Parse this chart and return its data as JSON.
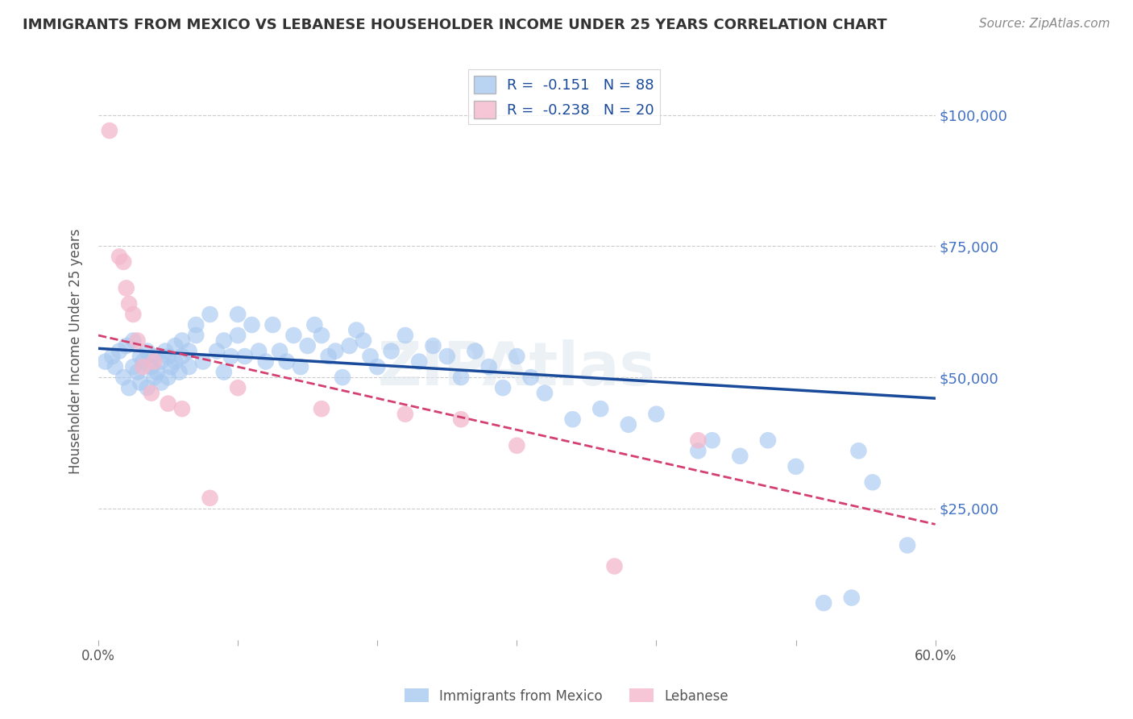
{
  "title": "IMMIGRANTS FROM MEXICO VS LEBANESE HOUSEHOLDER INCOME UNDER 25 YEARS CORRELATION CHART",
  "source": "Source: ZipAtlas.com",
  "ylabel": "Householder Income Under 25 years",
  "ytick_values": [
    25000,
    50000,
    75000,
    100000
  ],
  "y_min": 0,
  "y_max": 110000,
  "x_min": 0.0,
  "x_max": 0.6,
  "mexico_color": "#a8c8f0",
  "lebanese_color": "#f4b8cc",
  "mexico_line_color": "#1a4a9a",
  "lebanese_line_color": "#d44070",
  "mexico_scatter_x": [
    0.005,
    0.01,
    0.012,
    0.015,
    0.018,
    0.02,
    0.022,
    0.025,
    0.025,
    0.028,
    0.03,
    0.03,
    0.032,
    0.035,
    0.035,
    0.038,
    0.04,
    0.04,
    0.042,
    0.045,
    0.045,
    0.048,
    0.05,
    0.05,
    0.052,
    0.055,
    0.055,
    0.058,
    0.06,
    0.06,
    0.065,
    0.065,
    0.07,
    0.07,
    0.075,
    0.08,
    0.085,
    0.09,
    0.09,
    0.095,
    0.1,
    0.1,
    0.105,
    0.11,
    0.115,
    0.12,
    0.125,
    0.13,
    0.135,
    0.14,
    0.145,
    0.15,
    0.155,
    0.16,
    0.165,
    0.17,
    0.175,
    0.18,
    0.185,
    0.19,
    0.195,
    0.2,
    0.21,
    0.22,
    0.23,
    0.24,
    0.25,
    0.26,
    0.27,
    0.28,
    0.29,
    0.3,
    0.31,
    0.32,
    0.34,
    0.36,
    0.38,
    0.4,
    0.43,
    0.44,
    0.46,
    0.48,
    0.5,
    0.52,
    0.54,
    0.545,
    0.555,
    0.58
  ],
  "mexico_scatter_y": [
    53000,
    54000,
    52000,
    55000,
    50000,
    56000,
    48000,
    52000,
    57000,
    51000,
    49000,
    54000,
    53000,
    48000,
    55000,
    52000,
    50000,
    54000,
    51000,
    49000,
    53000,
    55000,
    50000,
    54000,
    52000,
    56000,
    53000,
    51000,
    57000,
    54000,
    52000,
    55000,
    60000,
    58000,
    53000,
    62000,
    55000,
    51000,
    57000,
    54000,
    58000,
    62000,
    54000,
    60000,
    55000,
    53000,
    60000,
    55000,
    53000,
    58000,
    52000,
    56000,
    60000,
    58000,
    54000,
    55000,
    50000,
    56000,
    59000,
    57000,
    54000,
    52000,
    55000,
    58000,
    53000,
    56000,
    54000,
    50000,
    55000,
    52000,
    48000,
    54000,
    50000,
    47000,
    42000,
    44000,
    41000,
    43000,
    36000,
    38000,
    35000,
    38000,
    33000,
    7000,
    8000,
    36000,
    30000,
    18000
  ],
  "lebanese_scatter_x": [
    0.008,
    0.015,
    0.018,
    0.02,
    0.022,
    0.025,
    0.028,
    0.032,
    0.038,
    0.04,
    0.05,
    0.06,
    0.08,
    0.1,
    0.16,
    0.22,
    0.26,
    0.3,
    0.37,
    0.43
  ],
  "lebanese_scatter_y": [
    97000,
    73000,
    72000,
    67000,
    64000,
    62000,
    57000,
    52000,
    47000,
    53000,
    45000,
    44000,
    27000,
    48000,
    44000,
    43000,
    42000,
    37000,
    14000,
    38000
  ],
  "background_color": "#ffffff"
}
